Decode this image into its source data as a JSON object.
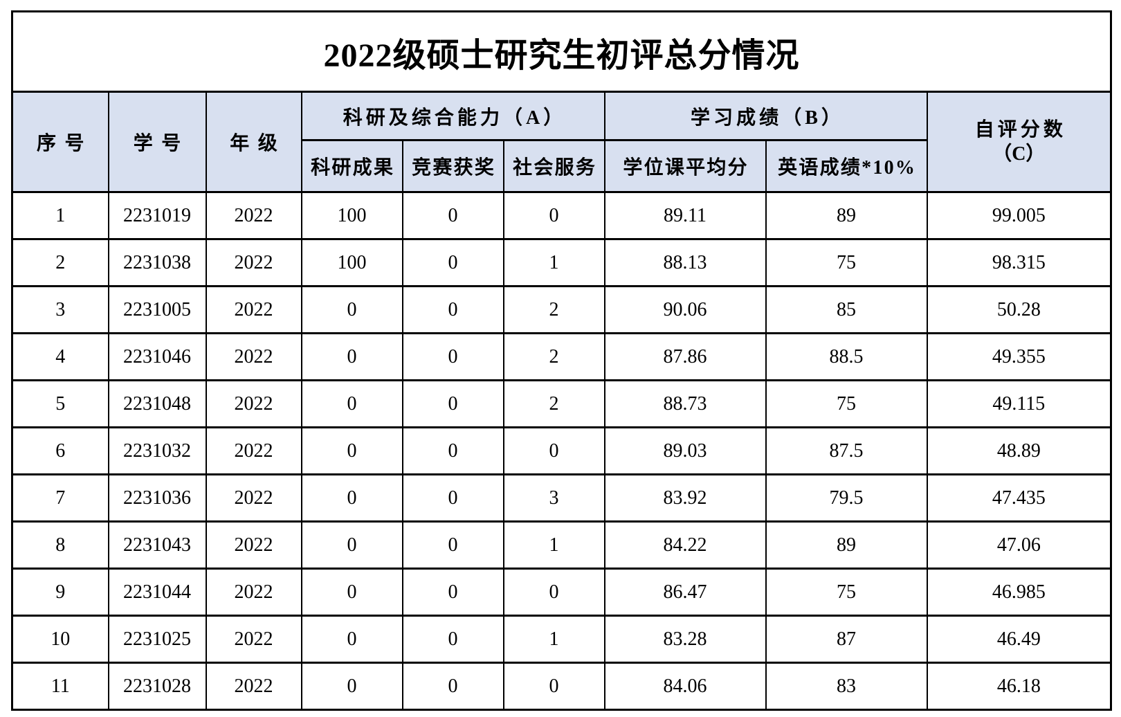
{
  "title": "2022级硕士研究生初评总分情况",
  "colors": {
    "header_bg": "#d8e0f0",
    "border": "#000000",
    "text": "#000000",
    "page_bg": "#ffffff"
  },
  "table": {
    "headers": {
      "index": "序号",
      "student_id": "学号",
      "grade": "年级",
      "group_a": "科研及综合能力（A）",
      "research": "科研成果",
      "competition": "竞赛获奖",
      "service": "社会服务",
      "group_b": "学习成绩（B）",
      "degree_avg": "学位课平均分",
      "english": "英语成绩*10%",
      "self_eval_line1": "自评分数",
      "self_eval_line2": "（C）"
    },
    "column_names": [
      "row-index",
      "student-id",
      "grade",
      "research-score",
      "competition-award",
      "social-service",
      "degree-course-average",
      "english-score",
      "self-eval-score"
    ],
    "rows": [
      [
        "1",
        "2231019",
        "2022",
        "100",
        "0",
        "0",
        "89.11",
        "89",
        "99.005"
      ],
      [
        "2",
        "2231038",
        "2022",
        "100",
        "0",
        "1",
        "88.13",
        "75",
        "98.315"
      ],
      [
        "3",
        "2231005",
        "2022",
        "0",
        "0",
        "2",
        "90.06",
        "85",
        "50.28"
      ],
      [
        "4",
        "2231046",
        "2022",
        "0",
        "0",
        "2",
        "87.86",
        "88.5",
        "49.355"
      ],
      [
        "5",
        "2231048",
        "2022",
        "0",
        "0",
        "2",
        "88.73",
        "75",
        "49.115"
      ],
      [
        "6",
        "2231032",
        "2022",
        "0",
        "0",
        "0",
        "89.03",
        "87.5",
        "48.89"
      ],
      [
        "7",
        "2231036",
        "2022",
        "0",
        "0",
        "3",
        "83.92",
        "79.5",
        "47.435"
      ],
      [
        "8",
        "2231043",
        "2022",
        "0",
        "0",
        "1",
        "84.22",
        "89",
        "47.06"
      ],
      [
        "9",
        "2231044",
        "2022",
        "0",
        "0",
        "0",
        "86.47",
        "75",
        "46.985"
      ],
      [
        "10",
        "2231025",
        "2022",
        "0",
        "0",
        "1",
        "83.28",
        "87",
        "46.49"
      ],
      [
        "11",
        "2231028",
        "2022",
        "0",
        "0",
        "0",
        "84.06",
        "83",
        "46.18"
      ]
    ]
  }
}
